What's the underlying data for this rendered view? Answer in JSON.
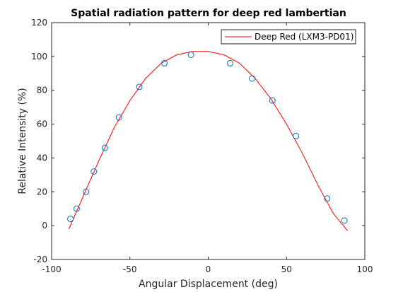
{
  "chart_data": {
    "type": "scatter",
    "title": "Spatial radiation pattern for deep red lambertian",
    "xlabel": "Angular Displacement (deg)",
    "ylabel": "Relative Intensity (%)",
    "xlim": [
      -100,
      100
    ],
    "ylim": [
      -20,
      120
    ],
    "xticks": [
      -100,
      -50,
      0,
      50,
      100
    ],
    "yticks": [
      -20,
      0,
      20,
      40,
      60,
      80,
      100,
      120
    ],
    "grid": false,
    "legend_position": "top-right",
    "series": [
      {
        "name": "",
        "kind": "markers",
        "color": "#0072bd",
        "points": [
          {
            "x": -88,
            "y": 4
          },
          {
            "x": -84,
            "y": 10
          },
          {
            "x": -78,
            "y": 20
          },
          {
            "x": -73,
            "y": 32
          },
          {
            "x": -66,
            "y": 46
          },
          {
            "x": -57,
            "y": 64
          },
          {
            "x": -44,
            "y": 82
          },
          {
            "x": -28,
            "y": 96
          },
          {
            "x": -11,
            "y": 101
          },
          {
            "x": 14,
            "y": 96
          },
          {
            "x": 28,
            "y": 87
          },
          {
            "x": 41,
            "y": 74
          },
          {
            "x": 56,
            "y": 53
          },
          {
            "x": 76,
            "y": 16
          },
          {
            "x": 87,
            "y": 3
          }
        ]
      },
      {
        "name": "Deep Red (LXM3-PD01)",
        "kind": "line",
        "color": "#ff0000",
        "points": [
          {
            "x": -89,
            "y": -2
          },
          {
            "x": -80,
            "y": 17
          },
          {
            "x": -70,
            "y": 38
          },
          {
            "x": -60,
            "y": 58
          },
          {
            "x": -50,
            "y": 74
          },
          {
            "x": -40,
            "y": 87
          },
          {
            "x": -30,
            "y": 96
          },
          {
            "x": -20,
            "y": 101
          },
          {
            "x": -10,
            "y": 103
          },
          {
            "x": -5,
            "y": 103
          },
          {
            "x": 0,
            "y": 103
          },
          {
            "x": 10,
            "y": 101
          },
          {
            "x": 20,
            "y": 96
          },
          {
            "x": 30,
            "y": 87
          },
          {
            "x": 40,
            "y": 75
          },
          {
            "x": 50,
            "y": 60
          },
          {
            "x": 60,
            "y": 43
          },
          {
            "x": 70,
            "y": 24
          },
          {
            "x": 80,
            "y": 7
          },
          {
            "x": 89,
            "y": -3
          }
        ]
      }
    ]
  }
}
